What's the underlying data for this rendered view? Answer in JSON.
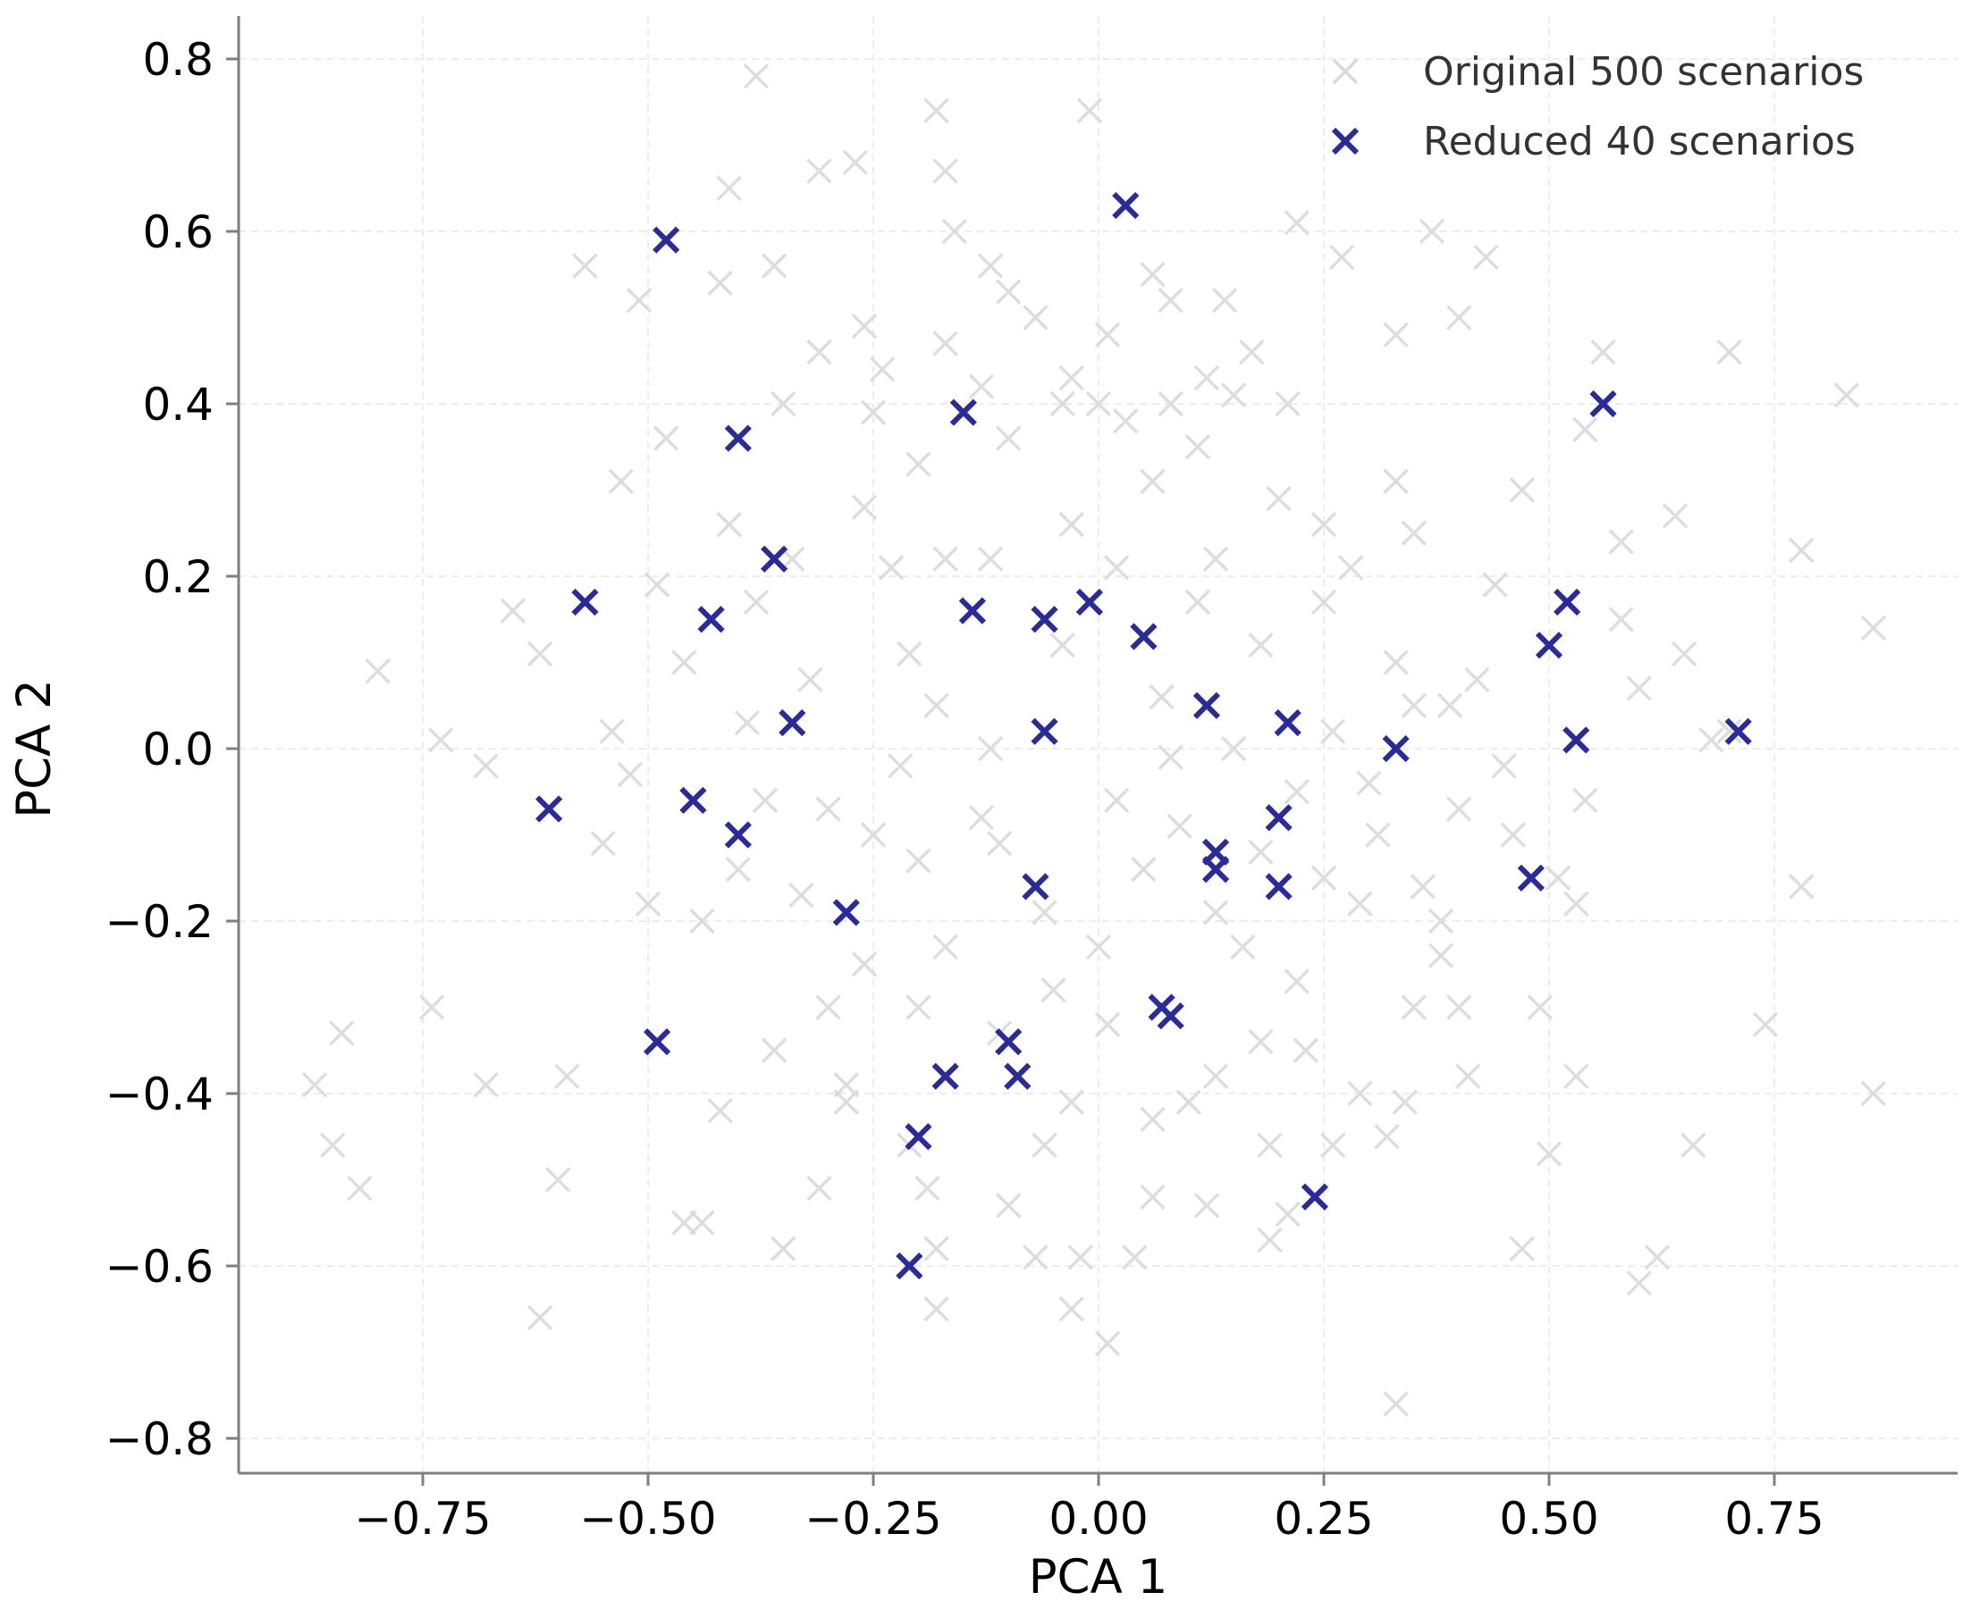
{
  "chart_data": {
    "type": "scatter",
    "xlabel": "PCA 1",
    "ylabel": "PCA 2",
    "xlim": [
      -0.95,
      0.95
    ],
    "ylim": [
      -0.85,
      0.85
    ],
    "xticks": [
      -0.75,
      -0.5,
      -0.25,
      0.0,
      0.25,
      0.5,
      0.75
    ],
    "xtick_labels": [
      "−0.75",
      "−0.50",
      "−0.25",
      "0.00",
      "0.25",
      "0.50",
      "0.75"
    ],
    "yticks": [
      0.8,
      0.6,
      0.4,
      0.2,
      0.0,
      -0.2,
      -0.4,
      -0.6,
      -0.8
    ],
    "ytick_labels": [
      "0.8",
      "0.6",
      "0.4",
      "0.2",
      "0.0",
      "−0.2",
      "−0.4",
      "−0.6",
      "−0.8"
    ],
    "grid": true,
    "legend_position": "top-right",
    "marker": "x",
    "series": [
      {
        "name": "Original 500 scenarios",
        "color": "#d9d9d9",
        "points": [
          [
            -0.38,
            0.78
          ],
          [
            -0.18,
            0.74
          ],
          [
            -0.01,
            0.74
          ],
          [
            -0.27,
            0.68
          ],
          [
            -0.31,
            0.67
          ],
          [
            -0.17,
            0.67
          ],
          [
            -0.41,
            0.65
          ],
          [
            0.22,
            0.61
          ],
          [
            0.37,
            0.6
          ],
          [
            -0.16,
            0.6
          ],
          [
            0.43,
            0.57
          ],
          [
            0.27,
            0.57
          ],
          [
            -0.57,
            0.56
          ],
          [
            -0.36,
            0.56
          ],
          [
            -0.12,
            0.56
          ],
          [
            0.06,
            0.55
          ],
          [
            -0.42,
            0.54
          ],
          [
            -0.1,
            0.53
          ],
          [
            0.14,
            0.52
          ],
          [
            -0.51,
            0.52
          ],
          [
            0.08,
            0.52
          ],
          [
            0.4,
            0.5
          ],
          [
            -0.26,
            0.49
          ],
          [
            -0.07,
            0.5
          ],
          [
            0.01,
            0.48
          ],
          [
            -0.17,
            0.47
          ],
          [
            0.33,
            0.48
          ],
          [
            0.56,
            0.46
          ],
          [
            0.7,
            0.46
          ],
          [
            -0.31,
            0.46
          ],
          [
            0.17,
            0.46
          ],
          [
            -0.03,
            0.43
          ],
          [
            -0.24,
            0.44
          ],
          [
            0.12,
            0.43
          ],
          [
            -0.13,
            0.42
          ],
          [
            0.83,
            0.41
          ],
          [
            0.21,
            0.4
          ],
          [
            -0.35,
            0.4
          ],
          [
            -0.04,
            0.4
          ],
          [
            0.0,
            0.4
          ],
          [
            0.08,
            0.4
          ],
          [
            0.15,
            0.41
          ],
          [
            0.54,
            0.37
          ],
          [
            -0.48,
            0.36
          ],
          [
            -0.25,
            0.39
          ],
          [
            -0.1,
            0.36
          ],
          [
            0.03,
            0.38
          ],
          [
            0.11,
            0.35
          ],
          [
            0.33,
            0.31
          ],
          [
            -0.53,
            0.31
          ],
          [
            -0.2,
            0.33
          ],
          [
            0.06,
            0.31
          ],
          [
            -0.26,
            0.28
          ],
          [
            0.47,
            0.3
          ],
          [
            0.25,
            0.26
          ],
          [
            0.64,
            0.27
          ],
          [
            -0.41,
            0.26
          ],
          [
            0.2,
            0.29
          ],
          [
            0.35,
            0.25
          ],
          [
            -0.03,
            0.26
          ],
          [
            0.58,
            0.24
          ],
          [
            0.78,
            0.23
          ],
          [
            -0.23,
            0.21
          ],
          [
            -0.17,
            0.22
          ],
          [
            -0.12,
            0.22
          ],
          [
            0.02,
            0.21
          ],
          [
            0.13,
            0.22
          ],
          [
            0.28,
            0.21
          ],
          [
            -0.34,
            0.22
          ],
          [
            0.44,
            0.19
          ],
          [
            -0.65,
            0.16
          ],
          [
            -0.49,
            0.19
          ],
          [
            0.25,
            0.17
          ],
          [
            -0.38,
            0.17
          ],
          [
            0.11,
            0.17
          ],
          [
            0.58,
            0.15
          ],
          [
            0.86,
            0.14
          ],
          [
            -0.62,
            0.11
          ],
          [
            -0.46,
            0.1
          ],
          [
            0.33,
            0.1
          ],
          [
            0.18,
            0.12
          ],
          [
            -0.21,
            0.11
          ],
          [
            -0.04,
            0.12
          ],
          [
            0.65,
            0.11
          ],
          [
            -0.8,
            0.09
          ],
          [
            0.42,
            0.08
          ],
          [
            0.6,
            0.07
          ],
          [
            0.35,
            0.05
          ],
          [
            -0.32,
            0.08
          ],
          [
            0.07,
            0.06
          ],
          [
            -0.18,
            0.05
          ],
          [
            -0.73,
            0.01
          ],
          [
            -0.54,
            0.02
          ],
          [
            -0.39,
            0.03
          ],
          [
            0.26,
            0.02
          ],
          [
            0.15,
            0.0
          ],
          [
            -0.12,
            0.0
          ],
          [
            0.39,
            0.05
          ],
          [
            -0.68,
            -0.02
          ],
          [
            -0.52,
            -0.03
          ],
          [
            -0.22,
            -0.02
          ],
          [
            0.08,
            -0.01
          ],
          [
            0.45,
            -0.02
          ],
          [
            0.68,
            0.01
          ],
          [
            0.3,
            -0.04
          ],
          [
            -0.37,
            -0.06
          ],
          [
            -0.13,
            -0.08
          ],
          [
            0.02,
            -0.06
          ],
          [
            0.22,
            -0.05
          ],
          [
            0.54,
            -0.06
          ],
          [
            -0.3,
            -0.07
          ],
          [
            0.4,
            -0.07
          ],
          [
            -0.25,
            -0.1
          ],
          [
            -0.11,
            -0.11
          ],
          [
            0.09,
            -0.09
          ],
          [
            0.31,
            -0.1
          ],
          [
            0.46,
            -0.1
          ],
          [
            -0.55,
            -0.11
          ],
          [
            0.18,
            -0.12
          ],
          [
            -0.4,
            -0.14
          ],
          [
            -0.2,
            -0.13
          ],
          [
            0.05,
            -0.14
          ],
          [
            0.25,
            -0.15
          ],
          [
            0.36,
            -0.16
          ],
          [
            0.51,
            -0.15
          ],
          [
            0.78,
            -0.16
          ],
          [
            -0.5,
            -0.18
          ],
          [
            -0.33,
            -0.17
          ],
          [
            -0.06,
            -0.19
          ],
          [
            0.13,
            -0.19
          ],
          [
            0.29,
            -0.18
          ],
          [
            0.53,
            -0.18
          ],
          [
            -0.44,
            -0.2
          ],
          [
            -0.17,
            -0.23
          ],
          [
            0.0,
            -0.23
          ],
          [
            0.16,
            -0.23
          ],
          [
            0.38,
            -0.24
          ],
          [
            -0.26,
            -0.25
          ],
          [
            0.22,
            -0.27
          ],
          [
            -0.05,
            -0.28
          ],
          [
            -0.74,
            -0.3
          ],
          [
            -0.3,
            -0.3
          ],
          [
            -0.2,
            -0.3
          ],
          [
            0.07,
            -0.3
          ],
          [
            0.35,
            -0.3
          ],
          [
            0.49,
            -0.3
          ],
          [
            0.74,
            -0.32
          ],
          [
            -0.84,
            -0.33
          ],
          [
            -0.36,
            -0.35
          ],
          [
            0.01,
            -0.32
          ],
          [
            0.23,
            -0.35
          ],
          [
            0.4,
            -0.3
          ],
          [
            -0.11,
            -0.33
          ],
          [
            0.18,
            -0.34
          ],
          [
            -0.87,
            -0.39
          ],
          [
            -0.68,
            -0.39
          ],
          [
            -0.59,
            -0.38
          ],
          [
            -0.28,
            -0.39
          ],
          [
            0.13,
            -0.38
          ],
          [
            0.41,
            -0.38
          ],
          [
            0.53,
            -0.38
          ],
          [
            -0.42,
            -0.42
          ],
          [
            -0.28,
            -0.41
          ],
          [
            -0.03,
            -0.41
          ],
          [
            0.1,
            -0.41
          ],
          [
            0.29,
            -0.4
          ],
          [
            0.34,
            -0.41
          ],
          [
            0.86,
            -0.4
          ],
          [
            -0.85,
            -0.46
          ],
          [
            -0.6,
            -0.5
          ],
          [
            -0.21,
            -0.46
          ],
          [
            0.06,
            -0.43
          ],
          [
            0.19,
            -0.46
          ],
          [
            0.5,
            -0.47
          ],
          [
            0.66,
            -0.46
          ],
          [
            -0.82,
            -0.51
          ],
          [
            -0.31,
            -0.51
          ],
          [
            -0.19,
            -0.51
          ],
          [
            0.12,
            -0.53
          ],
          [
            0.26,
            -0.46
          ],
          [
            0.32,
            -0.45
          ],
          [
            -0.06,
            -0.46
          ],
          [
            -0.46,
            -0.55
          ],
          [
            -0.44,
            -0.55
          ],
          [
            -0.1,
            -0.53
          ],
          [
            0.06,
            -0.52
          ],
          [
            0.19,
            -0.57
          ],
          [
            0.21,
            -0.54
          ],
          [
            -0.35,
            -0.58
          ],
          [
            -0.18,
            -0.58
          ],
          [
            -0.07,
            -0.59
          ],
          [
            -0.02,
            -0.59
          ],
          [
            0.04,
            -0.59
          ],
          [
            0.47,
            -0.58
          ],
          [
            0.62,
            -0.59
          ],
          [
            0.6,
            -0.62
          ],
          [
            -0.62,
            -0.66
          ],
          [
            -0.18,
            -0.65
          ],
          [
            -0.03,
            -0.65
          ],
          [
            0.01,
            -0.69
          ],
          [
            0.33,
            -0.76
          ],
          [
            0.38,
            -0.2
          ],
          [
            0.7,
            0.02
          ]
        ]
      },
      {
        "name": "Reduced 40 scenarios",
        "color": "#2b2b98",
        "points": [
          [
            0.03,
            0.63
          ],
          [
            -0.48,
            0.59
          ],
          [
            0.56,
            0.4
          ],
          [
            -0.15,
            0.39
          ],
          [
            -0.4,
            0.36
          ],
          [
            -0.36,
            0.22
          ],
          [
            -0.57,
            0.17
          ],
          [
            0.52,
            0.17
          ],
          [
            -0.43,
            0.15
          ],
          [
            -0.14,
            0.16
          ],
          [
            -0.06,
            0.15
          ],
          [
            -0.01,
            0.17
          ],
          [
            0.05,
            0.13
          ],
          [
            0.5,
            0.12
          ],
          [
            0.12,
            0.05
          ],
          [
            0.21,
            0.03
          ],
          [
            -0.34,
            0.03
          ],
          [
            -0.06,
            0.02
          ],
          [
            0.33,
            0.0
          ],
          [
            0.53,
            0.01
          ],
          [
            0.71,
            0.02
          ],
          [
            -0.61,
            -0.07
          ],
          [
            -0.45,
            -0.06
          ],
          [
            -0.4,
            -0.1
          ],
          [
            0.2,
            -0.08
          ],
          [
            0.13,
            -0.12
          ],
          [
            0.13,
            -0.14
          ],
          [
            0.48,
            -0.15
          ],
          [
            -0.28,
            -0.19
          ],
          [
            -0.07,
            -0.16
          ],
          [
            0.2,
            -0.16
          ],
          [
            0.07,
            -0.3
          ],
          [
            0.08,
            -0.31
          ],
          [
            -0.49,
            -0.34
          ],
          [
            -0.1,
            -0.34
          ],
          [
            -0.09,
            -0.38
          ],
          [
            -0.17,
            -0.38
          ],
          [
            -0.2,
            -0.45
          ],
          [
            0.24,
            -0.52
          ],
          [
            -0.21,
            -0.6
          ]
        ]
      }
    ]
  }
}
